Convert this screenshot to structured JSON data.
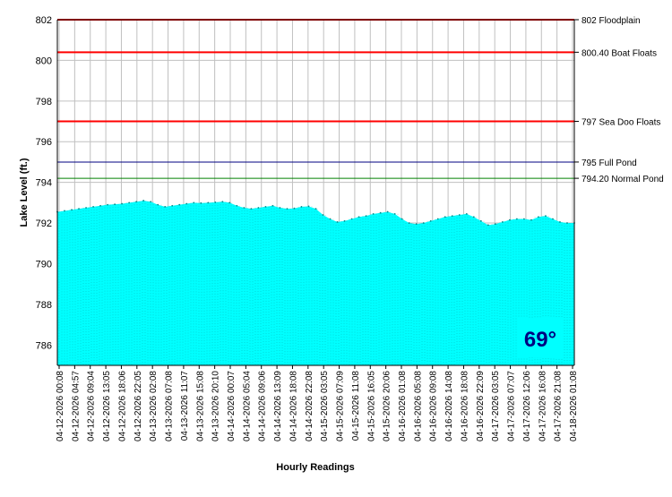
{
  "chart_data": {
    "type": "area",
    "xlabel": "Hourly Readings",
    "ylabel": "Lake Level (ft.)",
    "ylim": [
      785,
      802
    ],
    "yticks": [
      786,
      788,
      790,
      792,
      794,
      796,
      798,
      800,
      802
    ],
    "xticks": [
      "04-12-2026 00:08",
      "04-12-2026 04:57",
      "04-12-2026 09:04",
      "04-12-2026 13:05",
      "04-12-2026 18:06",
      "04-12-2026 22:05",
      "04-13-2026 02:08",
      "04-13-2026 07:08",
      "04-13-2026 11:07",
      "04-13-2026 15:08",
      "04-13-2026 20:10",
      "04-14-2026 00:07",
      "04-14-2026 05:04",
      "04-14-2026 09:06",
      "04-14-2026 13:09",
      "04-14-2026 18:08",
      "04-14-2026 22:08",
      "04-15-2026 03:05",
      "04-15-2026 07:09",
      "04-15-2026 11:08",
      "04-15-2026 16:05",
      "04-15-2026 20:06",
      "04-16-2026 01:08",
      "04-16-2026 05:08",
      "04-16-2026 09:08",
      "04-16-2026 14:08",
      "04-16-2026 18:08",
      "04-16-2026 22:09",
      "04-17-2026 03:05",
      "04-17-2026 07:07",
      "04-17-2026 12:06",
      "04-17-2026 16:08",
      "04-17-2026 21:08",
      "04-18-2026 01:08"
    ],
    "series": [
      {
        "color": "#00ffff",
        "values": [
          792.55,
          792.6,
          792.65,
          792.7,
          792.75,
          792.8,
          792.85,
          792.9,
          792.92,
          792.95,
          793.0,
          793.05,
          793.1,
          793.05,
          792.9,
          792.8,
          792.85,
          792.9,
          792.95,
          793.0,
          792.98,
          793.0,
          793.02,
          793.05,
          793.0,
          792.85,
          792.75,
          792.7,
          792.75,
          792.8,
          792.85,
          792.75,
          792.7,
          792.72,
          792.8,
          792.82,
          792.7,
          792.4,
          792.2,
          792.05,
          792.1,
          792.2,
          792.3,
          792.35,
          792.45,
          792.5,
          792.55,
          792.45,
          792.2,
          792.0,
          791.95,
          792.0,
          792.1,
          792.2,
          792.3,
          792.35,
          792.4,
          792.45,
          792.3,
          792.1,
          791.9,
          791.95,
          792.05,
          792.15,
          792.2,
          792.2,
          792.15,
          792.3,
          792.35,
          792.2,
          792.05,
          792.0,
          792.0
        ]
      }
    ],
    "reference_lines": [
      {
        "value": 802,
        "label": "802 Floodplain",
        "color": "#ff0000"
      },
      {
        "value": 800.4,
        "label": "800.40 Boat Floats",
        "color": "#ff0000"
      },
      {
        "value": 797,
        "label": "797 Sea Doo Floats",
        "color": "#ff0000"
      },
      {
        "value": 795,
        "label": "795 Full Pond",
        "color": "#000080"
      },
      {
        "value": 794.2,
        "label": "794.20 Normal Pond",
        "color": "#008000"
      }
    ],
    "grid": true,
    "plot_background": "#ffffff",
    "grid_color": "#c0c0c0"
  },
  "temperature": {
    "label": "69°",
    "color": "#000080",
    "background": "#00ffff"
  }
}
